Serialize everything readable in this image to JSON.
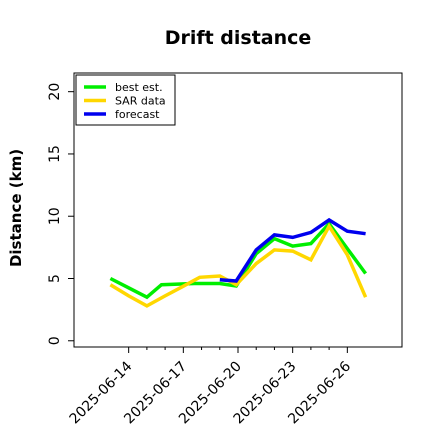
{
  "chart_data": {
    "type": "line",
    "title": "Drift distance",
    "xlabel": "",
    "ylabel": "Distance (km)",
    "ylim": [
      -0.5,
      21.5
    ],
    "xlim": [
      "2025-06-11",
      "2025-06-29"
    ],
    "y_ticks": [
      0,
      5,
      10,
      15,
      20
    ],
    "x_ticks": [
      "2025-06-14",
      "2025-06-15",
      "2025-06-16",
      "2025-06-17",
      "2025-06-18",
      "2025-06-19",
      "2025-06-20",
      "2025-06-21",
      "2025-06-22",
      "2025-06-23",
      "2025-06-24",
      "2025-06-25",
      "2025-06-26"
    ],
    "x_tick_labels": [
      "2025-06-14",
      "",
      "",
      "2025-06-17",
      "",
      "",
      "2025-06-20",
      "",
      "",
      "2025-06-23",
      "",
      "",
      "2025-06-26"
    ],
    "grid": false,
    "legend": "top-left",
    "series": [
      {
        "name": "best est.",
        "color": "#00ee00",
        "x": [
          "2025-06-13",
          "2025-06-15",
          "2025-06-15.8",
          "2025-06-17.6",
          "2025-06-19",
          "2025-06-19.9",
          "2025-06-21",
          "2025-06-22",
          "2025-06-23",
          "2025-06-24",
          "2025-06-25",
          "2025-06-26",
          "2025-06-27"
        ],
        "values": [
          5.0,
          3.5,
          4.5,
          4.6,
          4.6,
          4.4,
          7.0,
          8.2,
          7.6,
          7.8,
          9.4,
          7.4,
          5.4
        ]
      },
      {
        "name": "SAR data",
        "color": "#ffd700",
        "x": [
          "2025-06-13",
          "2025-06-14",
          "2025-06-15",
          "2025-06-16",
          "2025-06-16.9",
          "2025-06-17.9",
          "2025-06-19",
          "2025-06-19.9",
          "2025-06-21",
          "2025-06-22",
          "2025-06-23",
          "2025-06-24",
          "2025-06-25",
          "2025-06-26",
          "2025-06-27"
        ],
        "values": [
          4.5,
          3.6,
          2.8,
          3.6,
          4.3,
          5.1,
          5.2,
          4.5,
          6.2,
          7.3,
          7.2,
          6.5,
          9.2,
          6.9,
          3.5
        ]
      },
      {
        "name": "forecast",
        "color": "#0000ee",
        "x": [
          "2025-06-19",
          "2025-06-19.9",
          "2025-06-21",
          "2025-06-22",
          "2025-06-23",
          "2025-06-24",
          "2025-06-25",
          "2025-06-26",
          "2025-06-27"
        ],
        "values": [
          4.9,
          4.8,
          7.3,
          8.5,
          8.3,
          8.7,
          9.7,
          8.8,
          8.6
        ]
      }
    ]
  }
}
